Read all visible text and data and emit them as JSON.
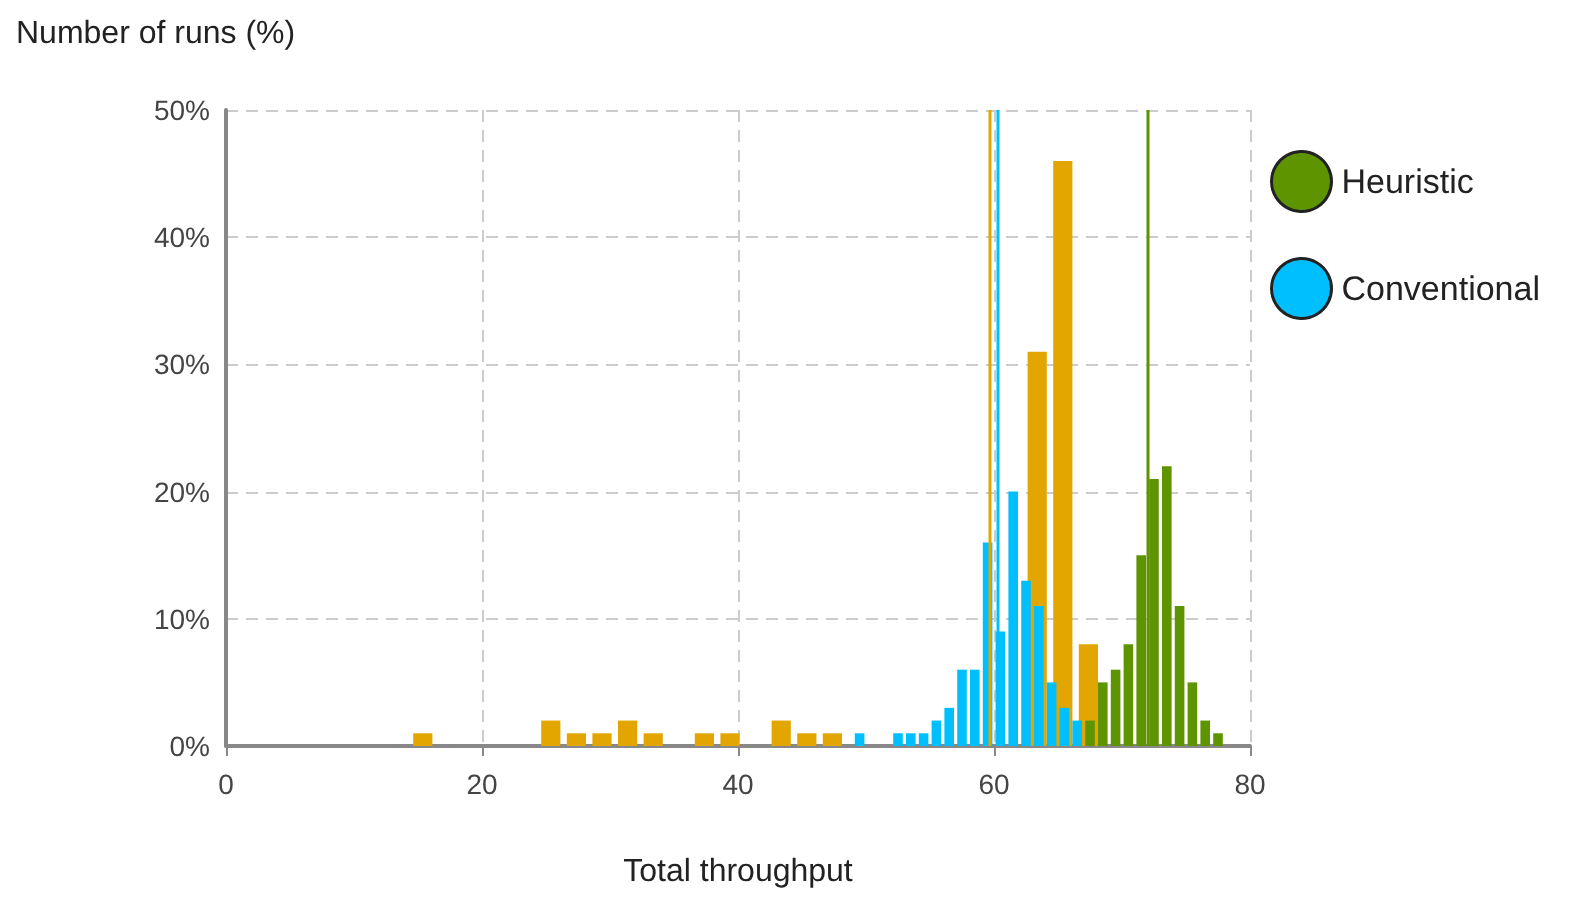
{
  "chart_data": {
    "type": "bar",
    "xlabel": "Total throughput",
    "ylabel": "Number of runs (%)",
    "xlim": [
      0,
      80
    ],
    "xticks": [
      0,
      20,
      40,
      60,
      80
    ],
    "ylim": [
      0,
      50
    ],
    "yticks": [
      {
        "value": 0,
        "label": "0%"
      },
      {
        "value": 10,
        "label": "10%"
      },
      {
        "value": 20,
        "label": "20%"
      },
      {
        "value": 30,
        "label": "30%"
      },
      {
        "value": 40,
        "label": "40%"
      },
      {
        "value": 50,
        "label": "50%"
      }
    ],
    "grid": true,
    "legend": "right",
    "series": [
      {
        "color": "#e3a600",
        "x": [
          15,
          25,
          27,
          29,
          31,
          33,
          37,
          39,
          43,
          45,
          47,
          63,
          65,
          67
        ],
        "values": [
          1,
          2,
          1,
          1,
          2,
          1,
          1,
          1,
          2,
          1,
          1,
          31,
          46,
          8
        ]
      },
      {
        "name": "Heuristic",
        "color": "#5e9400",
        "x": [
          67.5,
          68.5,
          69.5,
          70.5,
          71.5,
          72.5,
          73.5,
          74.5,
          75.5,
          76.5,
          77.5
        ],
        "values": [
          2,
          5,
          6,
          8,
          15,
          21,
          22,
          11,
          5,
          2,
          1
        ]
      },
      {
        "name": "Conventional",
        "color": "#00bfff",
        "x": [
          49.5,
          52.5,
          53.5,
          54.5,
          55.5,
          56.5,
          57.5,
          58.5,
          59.5,
          60.5,
          61.5,
          62.5,
          63.5,
          64.5,
          65.5,
          66.5
        ],
        "values": [
          1,
          1,
          1,
          1,
          2,
          3,
          6,
          6,
          16,
          9,
          20,
          13,
          11,
          5,
          3,
          2
        ]
      }
    ],
    "ref_lines": [
      {
        "axis": "x",
        "value": 59.7,
        "color": "#e3a600"
      },
      {
        "axis": "x",
        "value": 60.3,
        "color": "#00bfff"
      },
      {
        "axis": "x",
        "value": 72,
        "color": "#5e9400"
      }
    ]
  }
}
